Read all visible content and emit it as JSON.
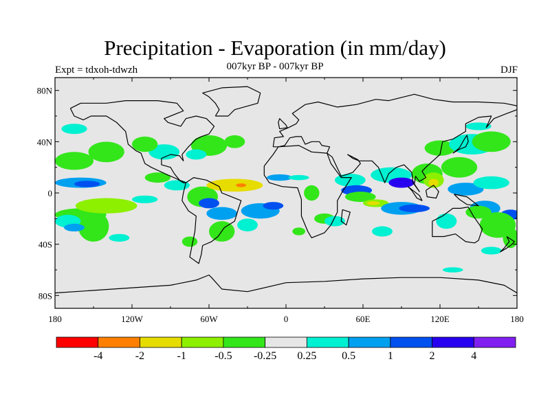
{
  "header": {
    "title": "Precipitation - Evaporation (in mm/day)",
    "subtitle": "007kyr BP - 007kyr BP",
    "left_label": "Expt = tdxoh-tdwzh",
    "right_label": "DJF"
  },
  "axes": {
    "y_ticks": [
      {
        "value": 80,
        "label": "80N"
      },
      {
        "value": 40,
        "label": "40N"
      },
      {
        "value": 0,
        "label": "0"
      },
      {
        "value": -40,
        "label": "40S"
      },
      {
        "value": -80,
        "label": "80S"
      }
    ],
    "x_ticks": [
      {
        "value": -180,
        "label": "180"
      },
      {
        "value": -120,
        "label": "120W"
      },
      {
        "value": -60,
        "label": "60W"
      },
      {
        "value": 0,
        "label": "0"
      },
      {
        "value": 60,
        "label": "60E"
      },
      {
        "value": 120,
        "label": "120E"
      },
      {
        "value": 180,
        "label": "180"
      }
    ],
    "lon_range": [
      -180,
      180
    ],
    "lat_range": [
      -90,
      90
    ]
  },
  "colorbar": {
    "colors": [
      "#ff0000",
      "#ff8000",
      "#e6dc00",
      "#8cf000",
      "#33e61a",
      "#e6e6e6",
      "#00f0d2",
      "#00a0f0",
      "#0050f0",
      "#2800f0",
      "#8020f0"
    ],
    "labels": [
      "-4",
      "-2",
      "-1",
      "-0.5",
      "-0.25",
      "0.25",
      "0.5",
      "1",
      "2",
      "4"
    ]
  },
  "map": {
    "background_color": "#e6e6e6",
    "regions": [
      {
        "level": 4,
        "lon": -160,
        "lat": -17,
        "rx": 20,
        "ry": 5
      },
      {
        "level": 4,
        "lon": -150,
        "lat": -26,
        "rx": 12,
        "ry": 12
      },
      {
        "level": 3,
        "lon": -140,
        "lat": -10,
        "rx": 24,
        "ry": 6
      },
      {
        "level": 4,
        "lon": -165,
        "lat": 25,
        "rx": 15,
        "ry": 7
      },
      {
        "level": 4,
        "lon": -140,
        "lat": 32,
        "rx": 14,
        "ry": 8
      },
      {
        "level": 6,
        "lon": -165,
        "lat": 50,
        "rx": 10,
        "ry": 4
      },
      {
        "level": 7,
        "lon": -160,
        "lat": 8,
        "rx": 20,
        "ry": 4
      },
      {
        "level": 8,
        "lon": -155,
        "lat": 7,
        "rx": 10,
        "ry": 2.5
      },
      {
        "level": 6,
        "lon": -170,
        "lat": -22,
        "rx": 10,
        "ry": 5
      },
      {
        "level": 7,
        "lon": -165,
        "lat": -27,
        "rx": 8,
        "ry": 3
      },
      {
        "level": 6,
        "lon": -130,
        "lat": -35,
        "rx": 8,
        "ry": 3
      },
      {
        "level": 6,
        "lon": -110,
        "lat": -5,
        "rx": 10,
        "ry": 3
      },
      {
        "level": 6,
        "lon": -85,
        "lat": 6,
        "rx": 10,
        "ry": 4
      },
      {
        "level": 4,
        "lon": -100,
        "lat": 12,
        "rx": 10,
        "ry": 4
      },
      {
        "level": 4,
        "lon": -65,
        "lat": -3,
        "rx": 12,
        "ry": 8
      },
      {
        "level": 8,
        "lon": -60,
        "lat": -8,
        "rx": 8,
        "ry": 4
      },
      {
        "level": 7,
        "lon": -50,
        "lat": -16,
        "rx": 12,
        "ry": 5
      },
      {
        "level": 4,
        "lon": -50,
        "lat": -30,
        "rx": 10,
        "ry": 8
      },
      {
        "level": 2,
        "lon": -40,
        "lat": 6,
        "rx": 22,
        "ry": 5
      },
      {
        "level": 1,
        "lon": -35,
        "lat": 6,
        "rx": 4,
        "ry": 1.5
      },
      {
        "level": 7,
        "lon": -20,
        "lat": -14,
        "rx": 15,
        "ry": 6
      },
      {
        "level": 8,
        "lon": -10,
        "lat": -10,
        "rx": 8,
        "ry": 3
      },
      {
        "level": 6,
        "lon": -30,
        "lat": -25,
        "rx": 8,
        "ry": 5
      },
      {
        "level": 7,
        "lon": -5,
        "lat": 12,
        "rx": 10,
        "ry": 2.5
      },
      {
        "level": 6,
        "lon": 10,
        "lat": 12,
        "rx": 8,
        "ry": 2
      },
      {
        "level": 6,
        "lon": -95,
        "lat": 32,
        "rx": 12,
        "ry": 6
      },
      {
        "level": 4,
        "lon": -110,
        "lat": 38,
        "rx": 10,
        "ry": 6
      },
      {
        "level": 4,
        "lon": -60,
        "lat": 37,
        "rx": 14,
        "ry": 8
      },
      {
        "level": 6,
        "lon": -70,
        "lat": 30,
        "rx": 8,
        "ry": 4
      },
      {
        "level": 4,
        "lon": -40,
        "lat": 40,
        "rx": 8,
        "ry": 5
      },
      {
        "level": 4,
        "lon": 20,
        "lat": 0,
        "rx": 6,
        "ry": 6
      },
      {
        "level": 4,
        "lon": 30,
        "lat": -20,
        "rx": 8,
        "ry": 4
      },
      {
        "level": 6,
        "lon": 38,
        "lat": -22,
        "rx": 8,
        "ry": 4
      },
      {
        "level": 6,
        "lon": 50,
        "lat": 10,
        "rx": 12,
        "ry": 5
      },
      {
        "level": 8,
        "lon": 55,
        "lat": 2,
        "rx": 12,
        "ry": 4
      },
      {
        "level": 4,
        "lon": 58,
        "lat": -3,
        "rx": 12,
        "ry": 4
      },
      {
        "level": 3,
        "lon": 70,
        "lat": -8,
        "rx": 10,
        "ry": 3
      },
      {
        "level": 2,
        "lon": 68,
        "lat": -8,
        "rx": 5,
        "ry": 1.5
      },
      {
        "level": 7,
        "lon": 90,
        "lat": -12,
        "rx": 16,
        "ry": 5
      },
      {
        "level": 8,
        "lon": 100,
        "lat": -12,
        "rx": 12,
        "ry": 3
      },
      {
        "level": 6,
        "lon": 82,
        "lat": 14,
        "rx": 16,
        "ry": 6
      },
      {
        "level": 9,
        "lon": 90,
        "lat": 8,
        "rx": 10,
        "ry": 4
      },
      {
        "level": 4,
        "lon": 110,
        "lat": 15,
        "rx": 12,
        "ry": 8
      },
      {
        "level": 3,
        "lon": 115,
        "lat": 10,
        "rx": 8,
        "ry": 6
      },
      {
        "level": 2,
        "lon": 115,
        "lat": 8,
        "rx": 4,
        "ry": 3
      },
      {
        "level": 4,
        "lon": 120,
        "lat": 35,
        "rx": 12,
        "ry": 6
      },
      {
        "level": 6,
        "lon": 145,
        "lat": 38,
        "rx": 18,
        "ry": 8
      },
      {
        "level": 4,
        "lon": 135,
        "lat": 20,
        "rx": 14,
        "ry": 8
      },
      {
        "level": 6,
        "lon": 150,
        "lat": 52,
        "rx": 10,
        "ry": 3
      },
      {
        "level": 4,
        "lon": 160,
        "lat": 40,
        "rx": 15,
        "ry": 8
      },
      {
        "level": 7,
        "lon": 140,
        "lat": 3,
        "rx": 14,
        "ry": 5
      },
      {
        "level": 6,
        "lon": 160,
        "lat": 8,
        "rx": 14,
        "ry": 5
      },
      {
        "level": 7,
        "lon": 155,
        "lat": -12,
        "rx": 12,
        "ry": 6
      },
      {
        "level": 8,
        "lon": 175,
        "lat": -17,
        "rx": 8,
        "ry": 4
      },
      {
        "level": 4,
        "lon": 165,
        "lat": -25,
        "rx": 14,
        "ry": 10
      },
      {
        "level": 4,
        "lon": 150,
        "lat": -15,
        "rx": 10,
        "ry": 5
      },
      {
        "level": 6,
        "lon": 125,
        "lat": -22,
        "rx": 8,
        "ry": 6
      },
      {
        "level": 4,
        "lon": 175,
        "lat": -35,
        "rx": 6,
        "ry": 8
      },
      {
        "level": 6,
        "lon": 160,
        "lat": -45,
        "rx": 8,
        "ry": 3
      },
      {
        "level": 4,
        "lon": 10,
        "lat": -30,
        "rx": 5,
        "ry": 3
      },
      {
        "level": 4,
        "lon": -75,
        "lat": -38,
        "rx": 6,
        "ry": 4
      },
      {
        "level": 6,
        "lon": 130,
        "lat": -60,
        "rx": 8,
        "ry": 2
      },
      {
        "level": 6,
        "lon": 75,
        "lat": -30,
        "rx": 8,
        "ry": 4
      }
    ]
  }
}
